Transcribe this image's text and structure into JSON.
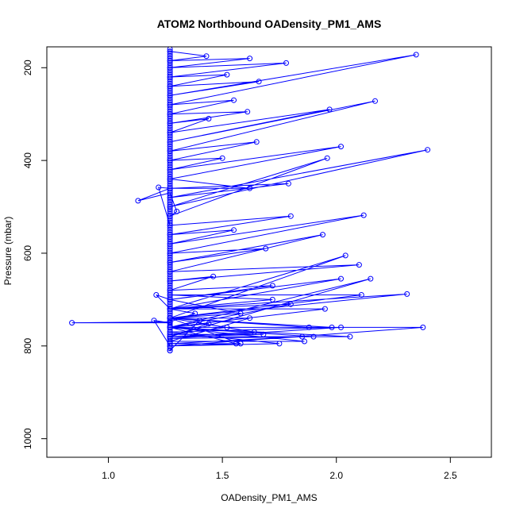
{
  "chart_data": {
    "type": "scatter",
    "title": "ATOM2 Northbound OADensity_PM1_AMS",
    "xlabel": "OADensity_PM1_AMS",
    "ylabel": "Pressure (mbar)",
    "xlim": [
      0.73,
      2.68
    ],
    "ylim": [
      1040,
      155
    ],
    "y_reversed": true,
    "x_ticks": [
      1.0,
      1.5,
      2.0,
      2.5
    ],
    "x_tick_labels": [
      "1.0",
      "1.5",
      "2.0",
      "2.5"
    ],
    "y_ticks": [
      200,
      400,
      600,
      800,
      1000
    ],
    "y_tick_labels": [
      "200",
      "400",
      "600",
      "800",
      "1000"
    ],
    "grid": false,
    "legend": "none",
    "series_style": "lines-and-open-circles",
    "color": "#0000ff",
    "baseline_x": 1.27,
    "baseline_y_range": [
      160,
      812
    ],
    "series": [
      {
        "x": [
          1.27,
          1.43,
          1.27,
          1.62,
          1.27,
          1.78,
          1.27,
          1.52,
          1.27,
          1.66,
          1.27,
          2.35,
          1.27,
          1.55,
          1.27,
          1.61,
          1.27,
          1.44,
          1.27,
          1.97,
          1.27,
          2.17,
          1.27,
          1.65,
          1.27,
          1.5,
          1.27,
          2.02,
          1.27,
          1.62,
          1.27,
          1.79,
          1.27,
          2.4,
          1.27,
          1.96,
          1.27,
          1.3,
          1.27,
          1.13,
          1.27,
          1.22,
          1.27,
          1.8,
          1.27,
          1.55,
          1.27,
          2.12,
          1.27,
          1.69,
          1.27,
          1.94,
          1.27,
          2.1,
          1.27,
          1.46,
          1.27,
          1.72,
          1.27,
          1.21,
          1.27,
          2.04,
          1.27,
          1.58,
          1.27,
          2.02,
          1.27,
          1.8,
          1.27,
          2.15,
          1.27,
          1.64,
          1.27,
          2.11,
          1.27,
          1.72,
          1.27,
          2.31,
          1.27,
          1.88,
          1.27,
          1.44,
          1.27,
          2.06,
          1.27,
          1.95,
          1.27,
          1.38,
          1.27,
          0.84,
          1.27,
          1.2,
          1.27,
          1.56,
          1.27,
          2.38,
          1.27,
          1.75,
          1.27,
          1.98,
          1.27,
          1.62,
          1.27,
          1.86,
          1.27,
          2.02,
          1.27,
          1.9,
          1.27,
          1.52,
          1.27,
          1.68,
          1.27,
          1.85,
          1.27,
          1.58,
          1.27,
          1.4,
          1.27
        ],
        "y": [
          165,
          175,
          185,
          180,
          200,
          190,
          220,
          215,
          240,
          230,
          260,
          172,
          280,
          270,
          300,
          295,
          320,
          310,
          340,
          290,
          360,
          272,
          380,
          360,
          400,
          395,
          420,
          370,
          440,
          460,
          460,
          450,
          480,
          377,
          500,
          395,
          520,
          510,
          470,
          487,
          460,
          458,
          540,
          520,
          560,
          550,
          580,
          518,
          600,
          590,
          620,
          560,
          640,
          625,
          660,
          650,
          680,
          670,
          700,
          690,
          720,
          605,
          740,
          730,
          700,
          655,
          720,
          710,
          760,
          655,
          780,
          770,
          740,
          690,
          690,
          700,
          720,
          688,
          740,
          760,
          760,
          752,
          780,
          780,
          760,
          720,
          720,
          730,
          748,
          750,
          750,
          745,
          800,
          795,
          760,
          760,
          800,
          795,
          770,
          760,
          740,
          740,
          790,
          790,
          760,
          760,
          784,
          780,
          760,
          760,
          775,
          775,
          780,
          780,
          795,
          795,
          740,
          745,
          810
        ]
      }
    ]
  }
}
